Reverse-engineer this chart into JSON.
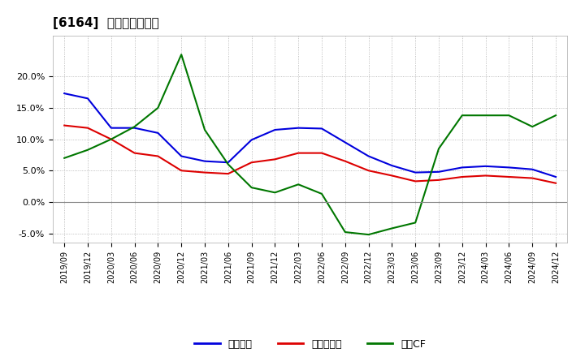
{
  "title": "[6164]  マージンの推移",
  "title_fontsize": 11,
  "background_color": "#ffffff",
  "plot_bg_color": "#ffffff",
  "grid_color": "#aaaaaa",
  "ylim": [
    -0.065,
    0.265
  ],
  "yticks": [
    -0.05,
    0.0,
    0.05,
    0.1,
    0.15,
    0.2
  ],
  "ytick_labels": [
    "-5.0%",
    "0.0%",
    "5.0%",
    "10.0%",
    "15.0%",
    "20.0%"
  ],
  "x_labels": [
    "2019/09",
    "2019/12",
    "2020/03",
    "2020/06",
    "2020/09",
    "2020/12",
    "2021/03",
    "2021/06",
    "2021/09",
    "2021/12",
    "2022/03",
    "2022/06",
    "2022/09",
    "2022/12",
    "2023/03",
    "2023/06",
    "2023/09",
    "2023/12",
    "2024/03",
    "2024/06",
    "2024/09",
    "2024/12"
  ],
  "series": {
    "経常利益": {
      "color": "#0000dd",
      "values": [
        0.173,
        0.165,
        0.118,
        0.118,
        0.11,
        0.073,
        0.065,
        0.063,
        0.099,
        0.115,
        0.118,
        0.117,
        0.095,
        0.073,
        0.058,
        0.047,
        0.048,
        0.055,
        0.057,
        0.055,
        0.052,
        0.04
      ]
    },
    "当期純利益": {
      "color": "#dd0000",
      "values": [
        0.122,
        0.118,
        0.1,
        0.078,
        0.073,
        0.05,
        0.047,
        0.045,
        0.063,
        0.068,
        0.078,
        0.078,
        0.065,
        0.05,
        0.042,
        0.033,
        0.035,
        0.04,
        0.042,
        0.04,
        0.038,
        0.03
      ]
    },
    "営業CF": {
      "color": "#007700",
      "values": [
        0.07,
        0.083,
        0.1,
        0.12,
        0.15,
        0.235,
        0.115,
        0.06,
        0.023,
        0.015,
        0.028,
        0.013,
        -0.048,
        -0.052,
        -0.042,
        -0.033,
        0.085,
        0.138,
        0.138,
        0.138,
        0.12,
        0.138
      ]
    }
  },
  "legend_entries": [
    "経常利益",
    "当期純利益",
    "営業CF"
  ],
  "legend_colors": [
    "#0000dd",
    "#dd0000",
    "#007700"
  ]
}
